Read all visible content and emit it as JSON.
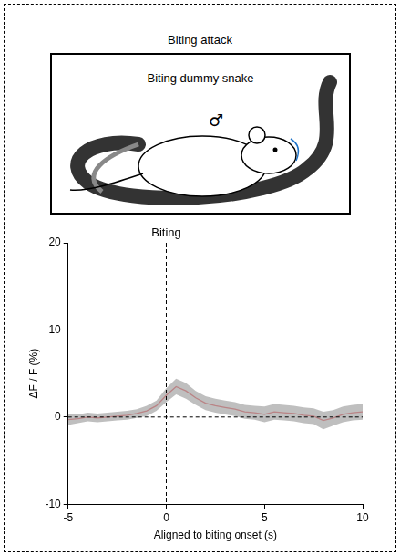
{
  "panel": {
    "title": "Biting attack",
    "illustration": {
      "label": "Biting dummy snake",
      "symbol": "♂"
    }
  },
  "chart_data": {
    "type": "line",
    "x_label": "Aligned to biting onset (s)",
    "y_label": "ΔF / F (%)",
    "x": [
      -5,
      -4.5,
      -4,
      -3.5,
      -3,
      -2.5,
      -2,
      -1.5,
      -1,
      -0.5,
      0,
      0.5,
      1,
      1.5,
      2,
      2.5,
      3,
      3.5,
      4,
      4.5,
      5,
      5.5,
      6,
      6.5,
      7,
      7.5,
      8,
      8.5,
      9,
      9.5,
      10
    ],
    "values": [
      -0.3,
      -0.2,
      0,
      -0.1,
      0,
      0.1,
      0.2,
      0.4,
      0.7,
      1.3,
      2.5,
      3.5,
      3.0,
      2.2,
      1.6,
      1.3,
      1.1,
      0.9,
      0.6,
      0.5,
      0.3,
      0.6,
      0.5,
      0.4,
      0.2,
      0.1,
      -0.4,
      -0.1,
      0.3,
      0.5,
      0.6
    ],
    "error": [
      0.6,
      0.5,
      0.5,
      0.5,
      0.5,
      0.5,
      0.5,
      0.5,
      0.6,
      0.6,
      0.8,
      0.9,
      0.9,
      0.8,
      0.8,
      0.8,
      0.8,
      0.8,
      0.8,
      0.8,
      0.9,
      0.9,
      0.9,
      0.9,
      0.9,
      0.9,
      1.0,
      0.9,
      0.9,
      0.9,
      0.9
    ],
    "color": "#e8141c",
    "xlim": [
      -5,
      10
    ],
    "xticks": [
      -5,
      0,
      5,
      10
    ],
    "ylim": [
      -10,
      20
    ],
    "yticks": [
      -10,
      0,
      10,
      20
    ],
    "grid": false,
    "annotations": [
      {
        "type": "vline",
        "x": 0,
        "label": "Biting",
        "line_style": "dashed"
      },
      {
        "type": "hline",
        "y": 0,
        "line_style": "dashed"
      }
    ]
  }
}
